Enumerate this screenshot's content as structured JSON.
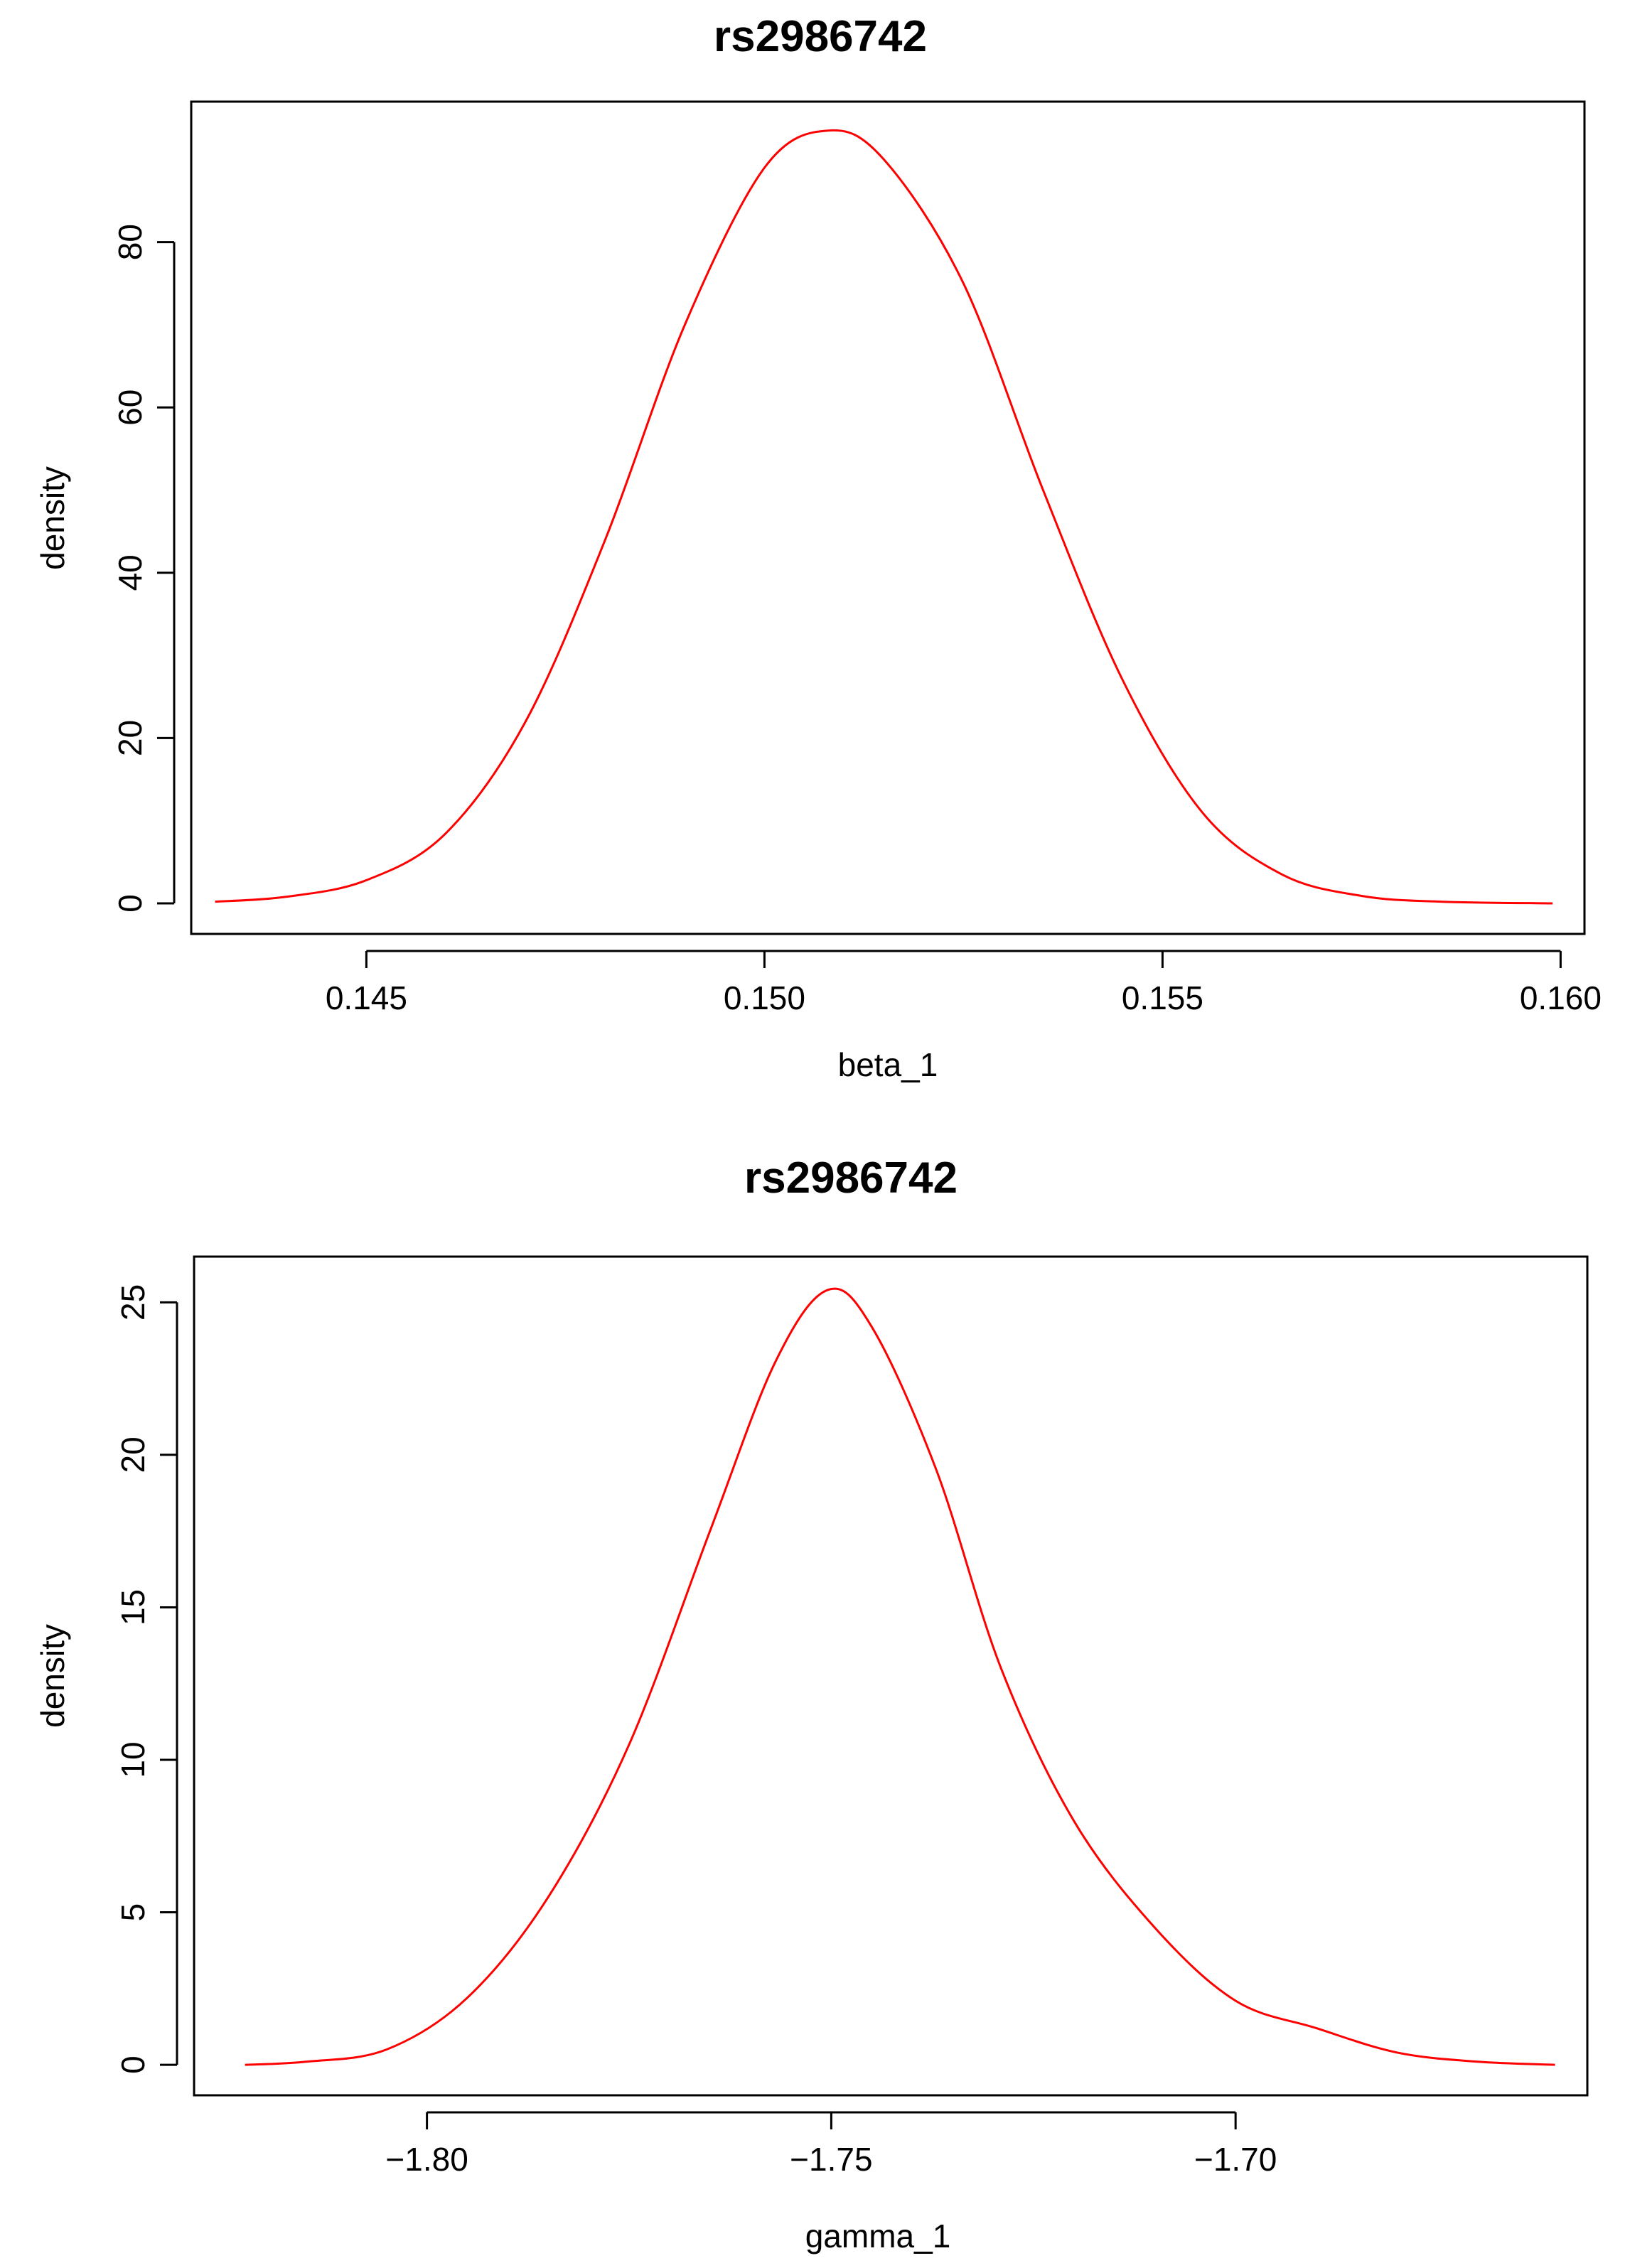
{
  "chart_data": [
    {
      "type": "line",
      "title": "rs2986742",
      "xlabel": "beta_1",
      "ylabel": "density",
      "xlim": [
        0.1428,
        0.1603
      ],
      "ylim": [
        -3.7,
        97
      ],
      "xticks": [
        "0.145",
        "0.150",
        "0.155",
        "0.160"
      ],
      "xtick_values": [
        0.145,
        0.15,
        0.155,
        0.16
      ],
      "yticks": [
        "0",
        "20",
        "40",
        "60",
        "80"
      ],
      "ytick_values": [
        0,
        20,
        40,
        60,
        80
      ],
      "grid": false,
      "line_color": "#ff0000",
      "x": [
        0.1431,
        0.144,
        0.145,
        0.146,
        0.147,
        0.148,
        0.149,
        0.15,
        0.1508,
        0.1515,
        0.1525,
        0.1535,
        0.1545,
        0.1555,
        0.1565,
        0.1575,
        0.1585,
        0.1599
      ],
      "y": [
        0.2,
        0.8,
        2.8,
        8.5,
        22,
        44,
        70,
        89,
        93.5,
        90,
        75,
        50,
        27,
        11,
        3.5,
        0.9,
        0.2,
        0.0
      ]
    },
    {
      "type": "line",
      "title": "rs2986742",
      "xlabel": "gamma_1",
      "ylabel": "density",
      "xlim": [
        -1.8288,
        -1.6565
      ],
      "ylim": [
        -1.0,
        26.5
      ],
      "xticks": [
        "−1.80",
        "−1.75",
        "−1.70"
      ],
      "xtick_values": [
        -1.8,
        -1.75,
        -1.7
      ],
      "yticks": [
        "0",
        "5",
        "10",
        "15",
        "20",
        "25"
      ],
      "ytick_values": [
        0,
        5,
        10,
        15,
        20,
        25
      ],
      "grid": false,
      "line_color": "#ff0000",
      "x": [
        -1.8225,
        -1.815,
        -1.805,
        -1.795,
        -1.785,
        -1.775,
        -1.765,
        -1.757,
        -1.7505,
        -1.745,
        -1.737,
        -1.729,
        -1.72,
        -1.71,
        -1.7,
        -1.69,
        -1.68,
        -1.67,
        -1.6605
      ],
      "y": [
        0.0,
        0.1,
        0.5,
        2.2,
        5.5,
        10.5,
        17.5,
        23,
        25.4,
        24.2,
        19.5,
        13.0,
        8.0,
        4.5,
        2.1,
        1.2,
        0.4,
        0.1,
        0.0
      ]
    }
  ]
}
